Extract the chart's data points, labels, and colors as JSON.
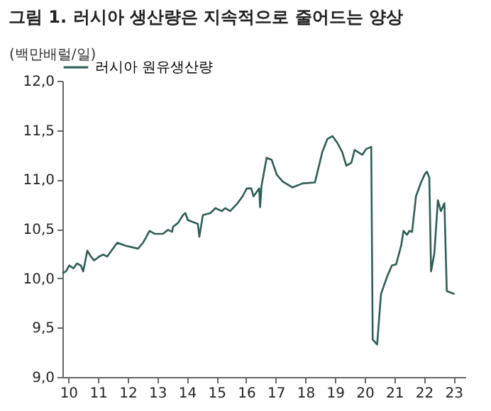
{
  "chart_data": {
    "type": "line",
    "title": "그림 1. 러시아 생산량은 지속적으로 줄어드는 양상",
    "ylabel": "(백만배럴/일)",
    "x": [
      9.8,
      9.92,
      10.03,
      10.17,
      10.29,
      10.42,
      10.5,
      10.64,
      10.76,
      10.87,
      11.04,
      11.18,
      11.31,
      11.48,
      11.65,
      11.93,
      12.35,
      12.52,
      12.74,
      12.91,
      13.19,
      13.36,
      13.5,
      13.53,
      13.7,
      13.87,
      13.95,
      14.03,
      14.37,
      14.42,
      14.54,
      14.79,
      14.96,
      15.18,
      15.29,
      15.46,
      15.71,
      15.88,
      16.02,
      16.17,
      16.25,
      16.44,
      16.47,
      16.52,
      16.69,
      16.86,
      17.03,
      17.23,
      17.56,
      17.9,
      18.32,
      18.57,
      18.74,
      18.91,
      19.08,
      19.24,
      19.38,
      19.55,
      19.66,
      19.92,
      20.05,
      20.22,
      20.27,
      20.42,
      20.55,
      20.76,
      20.92,
      21.06,
      21.23,
      21.31,
      21.43,
      21.51,
      21.6,
      21.73,
      21.9,
      22.02,
      22.1,
      22.18,
      22.24,
      22.35,
      22.47,
      22.57,
      22.69,
      22.77,
      23.03
    ],
    "series": [
      {
        "name": "러시아 원유생산량",
        "color": "#2e5e55",
        "values": [
          10.05,
          10.07,
          10.13,
          10.1,
          10.15,
          10.13,
          10.07,
          10.28,
          10.22,
          10.18,
          10.22,
          10.24,
          10.22,
          10.29,
          10.36,
          10.33,
          10.3,
          10.36,
          10.48,
          10.45,
          10.45,
          10.49,
          10.47,
          10.52,
          10.56,
          10.64,
          10.66,
          10.59,
          10.55,
          10.42,
          10.64,
          10.66,
          10.71,
          10.68,
          10.71,
          10.68,
          10.76,
          10.83,
          10.91,
          10.91,
          10.83,
          10.91,
          10.72,
          10.94,
          11.22,
          11.2,
          11.05,
          10.98,
          10.92,
          10.96,
          10.97,
          11.28,
          11.41,
          11.44,
          11.37,
          11.28,
          11.14,
          11.17,
          11.3,
          11.25,
          11.31,
          11.33,
          9.38,
          9.33,
          9.84,
          10.02,
          10.13,
          10.14,
          10.33,
          10.48,
          10.44,
          10.48,
          10.47,
          10.83,
          10.97,
          11.05,
          11.08,
          11.02,
          10.07,
          10.25,
          10.79,
          10.68,
          10.76,
          9.87,
          9.84
        ]
      }
    ],
    "xlim": [
      9.8,
      23.4
    ],
    "xticks": [
      10,
      11,
      12,
      13,
      14,
      15,
      16,
      17,
      18,
      19,
      20,
      21,
      22,
      23
    ],
    "ylim": [
      9,
      12
    ],
    "yticks": [
      {
        "value": 9,
        "label": "9,0"
      },
      {
        "value": 9.5,
        "label": "9,5"
      },
      {
        "value": 10,
        "label": "10,0"
      },
      {
        "value": 10.5,
        "label": "10,5"
      },
      {
        "value": 11,
        "label": "11,0"
      },
      {
        "value": 11.5,
        "label": "11,5"
      },
      {
        "value": 12,
        "label": "12,0"
      }
    ],
    "grid": false,
    "legend": "top",
    "marker": "none",
    "line_style": "solid"
  }
}
